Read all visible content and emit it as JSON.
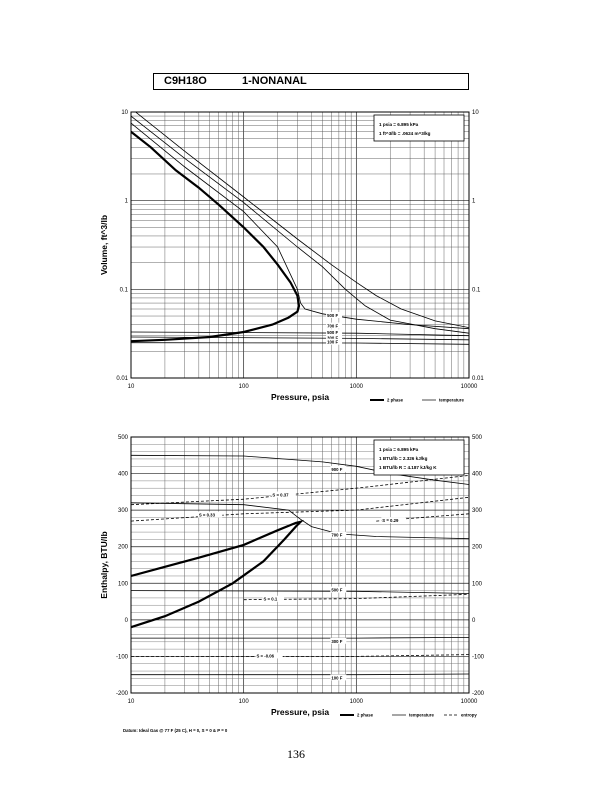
{
  "header": {
    "formula": "C9H18O",
    "compound": "1-NONANAL"
  },
  "page_number": "136",
  "chart_data": [
    {
      "type": "line",
      "xscale": "log",
      "yscale": "log",
      "xlabel": "Pressure,  psia",
      "ylabel": "Volume, ft^3/lb",
      "xlim": [
        10,
        10000
      ],
      "ylim": [
        0.01,
        10
      ],
      "x_ticks": [
        "10",
        "100",
        "1000",
        "10000"
      ],
      "y_ticks": [
        "0.01",
        "0.1",
        "1",
        "10"
      ],
      "grid": true,
      "conversions": [
        "1 psia  =  6.895 kPa",
        "1 ft^3/lb  =  .0624 m^3/kg"
      ],
      "legend": {
        "position": "bottom-right",
        "entries": [
          "2 phase",
          "temperature"
        ]
      },
      "series": [
        {
          "name": "2 phase",
          "style": "thick",
          "points": [
            [
              10,
              6.0
            ],
            [
              15,
              4.0
            ],
            [
              25,
              2.2
            ],
            [
              40,
              1.4
            ],
            [
              60,
              0.9
            ],
            [
              100,
              0.5
            ],
            [
              150,
              0.3
            ],
            [
              200,
              0.19
            ],
            [
              260,
              0.12
            ],
            [
              300,
              0.085
            ],
            [
              310,
              0.065
            ],
            [
              300,
              0.056
            ],
            [
              250,
              0.048
            ],
            [
              180,
              0.04
            ],
            [
              100,
              0.033
            ],
            [
              50,
              0.029
            ],
            [
              20,
              0.027
            ],
            [
              10,
              0.026
            ]
          ]
        },
        {
          "name": "500 F",
          "label_at": [
            550,
            0.05
          ],
          "points": [
            [
              10,
              7.5
            ],
            [
              30,
              2.4
            ],
            [
              100,
              0.75
            ],
            [
              200,
              0.3
            ],
            [
              300,
              0.1
            ],
            [
              320,
              0.07
            ],
            [
              350,
              0.06
            ],
            [
              500,
              0.053
            ],
            [
              1000,
              0.046
            ],
            [
              3000,
              0.04
            ],
            [
              10000,
              0.036
            ]
          ]
        },
        {
          "name": "700 F",
          "label_at": [
            550,
            0.038
          ],
          "points": [
            [
              10,
              9.0
            ],
            [
              30,
              3.0
            ],
            [
              100,
              0.95
            ],
            [
              300,
              0.3
            ],
            [
              500,
              0.18
            ],
            [
              800,
              0.1
            ],
            [
              1200,
              0.065
            ],
            [
              2000,
              0.045
            ],
            [
              5000,
              0.036
            ],
            [
              10000,
              0.032
            ]
          ]
        },
        {
          "name": "900 F",
          "points": [
            [
              10,
              11.0
            ],
            [
              30,
              3.6
            ],
            [
              100,
              1.1
            ],
            [
              300,
              0.37
            ],
            [
              600,
              0.19
            ],
            [
              1000,
              0.12
            ],
            [
              1500,
              0.085
            ],
            [
              2500,
              0.06
            ],
            [
              5000,
              0.044
            ],
            [
              10000,
              0.037
            ]
          ]
        },
        {
          "name": "500 F",
          "label_at": [
            550,
            0.032
          ],
          "points": [
            [
              10,
              0.033
            ],
            [
              1000,
              0.032
            ],
            [
              10000,
              0.03
            ]
          ]
        },
        {
          "name": "300 F",
          "label_at": [
            550,
            0.028
          ],
          "points": [
            [
              10,
              0.029
            ],
            [
              1000,
              0.028
            ],
            [
              10000,
              0.027
            ]
          ]
        },
        {
          "name": "100 F",
          "label_at": [
            550,
            0.025
          ],
          "points": [
            [
              10,
              0.025
            ],
            [
              1000,
              0.0248
            ],
            [
              10000,
              0.024
            ]
          ]
        }
      ]
    },
    {
      "type": "line",
      "xscale": "log",
      "xlabel": "Pressure,  psia",
      "ylabel": "Enthalpy, BTU/lb",
      "xlim": [
        10,
        10000
      ],
      "ylim": [
        -200,
        500
      ],
      "x_ticks": [
        "10",
        "100",
        "1000",
        "10000"
      ],
      "y_ticks": [
        "-200",
        "-100",
        "0",
        "100",
        "200",
        "300",
        "400",
        "500"
      ],
      "grid": true,
      "conversions": [
        "1 psia  =  6.895 kPa",
        "1 BTU/lb  =  2.326 kJ/kg",
        "1 BTU/lb R  =  4.187 kJ/kg K"
      ],
      "datum": "Datum: Ideal Gas @ 77 F (25 C),  H = 0,  S = 0 & P = 0",
      "legend": {
        "position": "bottom",
        "entries": [
          "2 phase",
          "temperature",
          "entropy"
        ]
      },
      "series": [
        {
          "name": "2 phase",
          "style": "thick",
          "points": [
            [
              10,
              -20
            ],
            [
              20,
              10
            ],
            [
              40,
              50
            ],
            [
              80,
              100
            ],
            [
              150,
              160
            ],
            [
              230,
              220
            ],
            [
              290,
              255
            ],
            [
              320,
              268
            ],
            [
              290,
              265
            ],
            [
              200,
              245
            ],
            [
              100,
              205
            ],
            [
              40,
              170
            ],
            [
              20,
              145
            ],
            [
              10,
              120
            ]
          ]
        },
        {
          "name": "900 F",
          "label_at": [
            600,
            410
          ],
          "points": [
            [
              10,
              450
            ],
            [
              100,
              448
            ],
            [
              500,
              432
            ],
            [
              1000,
              420
            ],
            [
              2000,
              400
            ],
            [
              5000,
              382
            ],
            [
              10000,
              370
            ]
          ]
        },
        {
          "name": "700 F",
          "label_at": [
            600,
            230
          ],
          "points": [
            [
              10,
              320
            ],
            [
              100,
              315
            ],
            [
              250,
              300
            ],
            [
              320,
              275
            ],
            [
              400,
              255
            ],
            [
              700,
              235
            ],
            [
              1500,
              228
            ],
            [
              5000,
              224
            ],
            [
              10000,
              222
            ]
          ]
        },
        {
          "name": "500 F",
          "label_at": [
            600,
            80
          ],
          "points": [
            [
              10,
              80
            ],
            [
              1000,
              78
            ],
            [
              10000,
              72
            ]
          ]
        },
        {
          "name": "300 F",
          "label_at": [
            600,
            -60
          ],
          "points": [
            [
              10,
              -50
            ],
            [
              1000,
              -50
            ],
            [
              10000,
              -48
            ]
          ]
        },
        {
          "name": "100 F",
          "label_at": [
            600,
            -160
          ],
          "points": [
            [
              10,
              -150
            ],
            [
              1000,
              -150
            ],
            [
              10000,
              -148
            ]
          ]
        },
        {
          "name": "S = 0.37",
          "dashed": true,
          "label_at": [
            180,
            340
          ],
          "points": [
            [
              10,
              315
            ],
            [
              100,
              330
            ],
            [
              1000,
              360
            ],
            [
              10000,
              395
            ]
          ]
        },
        {
          "name": "S = 0.33",
          "dashed": true,
          "label_at": [
            40,
            285
          ],
          "points": [
            [
              10,
              270
            ],
            [
              100,
              290
            ],
            [
              1000,
              300
            ],
            [
              10000,
              335
            ]
          ]
        },
        {
          "name": "S = 0.29",
          "dashed": true,
          "label_at": [
            1700,
            270
          ],
          "points": [
            [
              1500,
              270
            ],
            [
              10000,
              290
            ]
          ]
        },
        {
          "name": "S = 0.1",
          "dashed": true,
          "label_at": [
            150,
            55
          ],
          "points": [
            [
              100,
              55
            ],
            [
              1000,
              58
            ],
            [
              10000,
              70
            ]
          ]
        },
        {
          "name": "S = -0.06",
          "dashed": true,
          "label_at": [
            130,
            -100
          ],
          "points": [
            [
              10,
              -100
            ],
            [
              1000,
              -100
            ],
            [
              10000,
              -95
            ]
          ]
        }
      ]
    }
  ]
}
